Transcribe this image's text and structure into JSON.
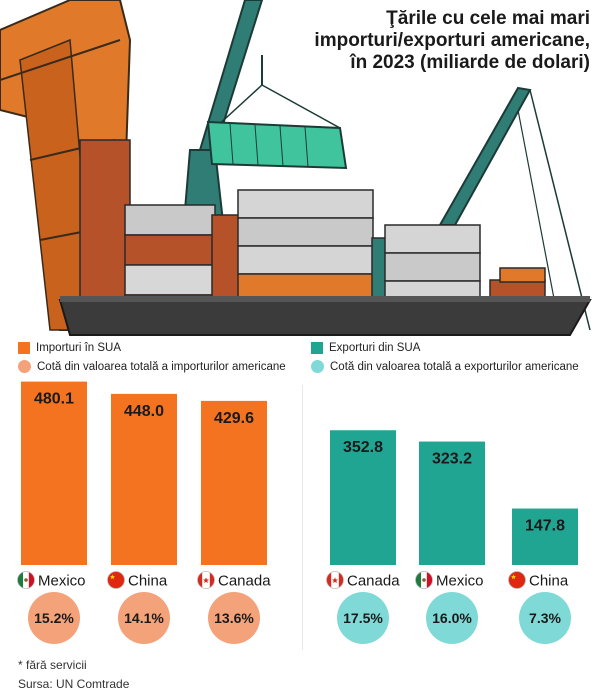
{
  "title_lines": [
    "Ţările cu cele mai mari",
    "importuri/exporturi americane,",
    "în 2023 (miliarde de dolari)"
  ],
  "colors": {
    "imports": "#f47321",
    "imports_share": "#f4a27a",
    "exports": "#21a593",
    "exports_share": "#7fd9d6"
  },
  "legend": {
    "imports": "Importuri în SUA",
    "imports_share": "Cotă din valoarea totală a importurilor americane",
    "exports": "Exporturi din SUA",
    "exports_share": "Cotă din valoarea totală a exporturilor americane"
  },
  "chart_data": [
    {
      "type": "bar",
      "series": [
        {
          "name": "Importuri în SUA",
          "values": [
            480.1,
            448.0,
            429.6
          ]
        },
        {
          "name": "Cotă din valoarea totală a importurilor americane",
          "values": [
            15.2,
            14.1,
            13.6
          ]
        }
      ],
      "categories": [
        "Mexico",
        "China",
        "Canada"
      ],
      "value_labels": [
        "480.1",
        "448.0",
        "429.6"
      ],
      "share_labels": [
        "15.2%",
        "14.1%",
        "13.6%"
      ],
      "flags": [
        "mexico",
        "china",
        "canada"
      ]
    },
    {
      "type": "bar",
      "series": [
        {
          "name": "Exporturi din SUA",
          "values": [
            352.8,
            323.2,
            147.8
          ]
        },
        {
          "name": "Cotă din valoarea totală a exporturilor americane",
          "values": [
            17.5,
            16.0,
            7.3
          ]
        }
      ],
      "categories": [
        "Canada",
        "Mexico",
        "China"
      ],
      "value_labels": [
        "352.8",
        "323.2",
        "147.8"
      ],
      "share_labels": [
        "17.5%",
        "16.0%",
        "7.3%"
      ],
      "flags": [
        "canada",
        "mexico",
        "china"
      ]
    }
  ],
  "footnote": "* fără servicii",
  "source": "Sursa: UN Comtrade"
}
